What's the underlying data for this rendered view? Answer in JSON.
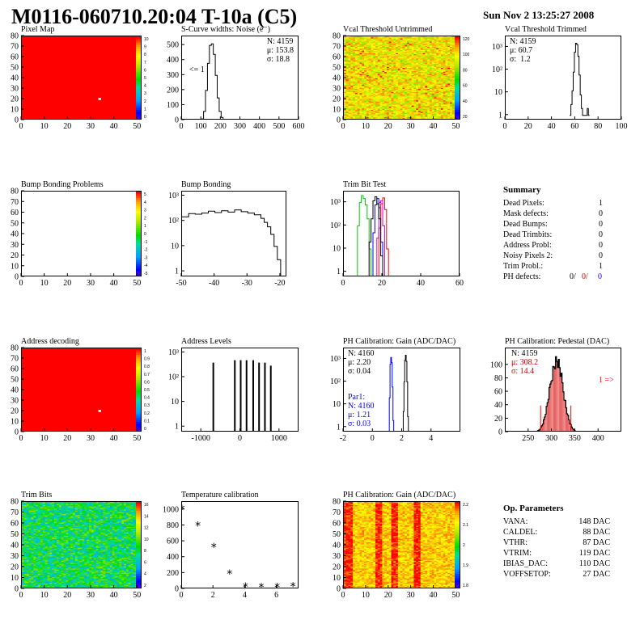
{
  "header": {
    "title": "M0116-060710.20:04 T-10a (C5)",
    "timestamp": "Sun Nov  2 13:25:27 2008"
  },
  "colors": {
    "red": "#ff0000",
    "blue": "#0000ff",
    "green": "#00cc00",
    "black": "#000000",
    "dark_red": "#cc0000"
  },
  "chart_data": [
    {
      "id": "pixel-map",
      "type": "heatmap",
      "title": "Pixel Map",
      "xlim": [
        0,
        52
      ],
      "ylim": [
        0,
        80
      ],
      "xticks": [
        0,
        10,
        20,
        30,
        40,
        50
      ],
      "yticks": [
        0,
        10,
        20,
        30,
        40,
        50,
        60,
        70,
        80
      ],
      "palette_ticks": [
        "10",
        "9",
        "8",
        "7",
        "6",
        "5",
        "4",
        "3",
        "2",
        "1",
        "0"
      ],
      "fill_value": 10,
      "outlier": {
        "x": 33,
        "y": 20,
        "value": 0
      }
    },
    {
      "id": "scurve-noise",
      "type": "line",
      "title": "S-Curve widths: Noise (e⁻)",
      "xlim": [
        0,
        600
      ],
      "ylim": [
        0,
        560
      ],
      "xticks": [
        0,
        100,
        200,
        300,
        400,
        500,
        600
      ],
      "yticks": [
        0,
        100,
        200,
        300,
        400,
        500
      ],
      "stats": [
        "N: 4159",
        "μ: 153.8",
        "σ: 18.8"
      ],
      "annotation": "<= 1",
      "x": [
        80,
        100,
        110,
        120,
        130,
        140,
        150,
        160,
        170,
        180,
        190,
        200,
        210,
        220,
        240
      ],
      "y": [
        0,
        10,
        60,
        200,
        380,
        500,
        510,
        440,
        300,
        150,
        60,
        20,
        8,
        2,
        0
      ]
    },
    {
      "id": "vcal-untrimmed",
      "type": "heatmap",
      "title": "Vcal Threshold Untrimmed",
      "xlim": [
        0,
        52
      ],
      "ylim": [
        0,
        80
      ],
      "xticks": [
        0,
        10,
        20,
        30,
        40,
        50
      ],
      "yticks": [
        0,
        10,
        20,
        30,
        40,
        50,
        60,
        70,
        80
      ],
      "palette_ticks": [
        "120",
        "100",
        "80",
        "60",
        "40",
        "20"
      ],
      "value_range": [
        20,
        130
      ]
    },
    {
      "id": "vcal-trimmed",
      "type": "line",
      "title": "Vcal Threshold Trimmed",
      "log_y": true,
      "xlim": [
        0,
        100
      ],
      "ylim": [
        0.6,
        3000
      ],
      "xticks": [
        0,
        20,
        40,
        60,
        80,
        100
      ],
      "yticks": [
        "1",
        "10",
        "10²",
        "10³"
      ],
      "stats": [
        "N: 4159",
        "μ: 60.7",
        "σ:  1.2"
      ],
      "x": [
        55,
        56,
        57,
        58,
        59,
        60,
        61,
        62,
        63,
        64,
        65,
        66,
        70,
        71,
        72
      ],
      "y": [
        1,
        3,
        12,
        80,
        600,
        1500,
        1300,
        400,
        60,
        8,
        2,
        1,
        2,
        1,
        1
      ]
    },
    {
      "id": "bump-bonding-problems",
      "type": "heatmap",
      "title": "Bump Bonding Problems",
      "xlim": [
        0,
        52
      ],
      "ylim": [
        0,
        80
      ],
      "xticks": [
        0,
        10,
        20,
        30,
        40,
        50
      ],
      "yticks": [
        0,
        10,
        20,
        30,
        40,
        50,
        60,
        70,
        80
      ],
      "palette_ticks": [
        "5",
        "4",
        "3",
        "2",
        "1",
        "0",
        "-1",
        "-2",
        "-3",
        "-4",
        "-5"
      ],
      "empty": true
    },
    {
      "id": "bump-bonding",
      "type": "line",
      "title": "Bump Bonding",
      "log_y": true,
      "xlim": [
        -50,
        -18
      ],
      "ylim": [
        0.6,
        1500
      ],
      "xticks": [
        -50,
        -40,
        -30,
        -20
      ],
      "yticks": [
        "1",
        "10",
        "10²",
        "10³"
      ],
      "x": [
        -50,
        -48,
        -46,
        -44,
        -42,
        -40,
        -38,
        -36,
        -34,
        -32,
        -30,
        -28,
        -26,
        -25,
        -24,
        -23,
        -22,
        -21,
        -20
      ],
      "y": [
        150,
        200,
        190,
        210,
        250,
        220,
        260,
        230,
        280,
        240,
        210,
        180,
        130,
        90,
        60,
        30,
        10,
        3,
        0.6
      ]
    },
    {
      "id": "trim-bit-test",
      "type": "line",
      "title": "Trim Bit Test",
      "log_y": true,
      "xlim": [
        0,
        60
      ],
      "ylim": [
        0.6,
        3000
      ],
      "xticks": [
        0,
        20,
        40,
        60
      ],
      "yticks": [
        "1",
        "10",
        "10²",
        "10³"
      ],
      "series": [
        {
          "color": "#00cc00",
          "x": [
            5,
            7,
            8,
            9,
            10,
            11,
            12,
            13,
            14,
            60
          ],
          "y": [
            0.6,
            100,
            1000,
            2000,
            1500,
            800,
            200,
            10,
            0.6,
            0.6
          ]
        },
        {
          "color": "#0000ff",
          "x": [
            14,
            15,
            16,
            17,
            18,
            19,
            20
          ],
          "y": [
            0.6,
            50,
            800,
            1500,
            600,
            20,
            0.6
          ]
        },
        {
          "color": "#ff0000",
          "x": [
            17,
            18,
            19,
            20,
            21,
            22,
            23
          ],
          "y": [
            0.6,
            80,
            900,
            1600,
            500,
            10,
            0.6
          ]
        },
        {
          "color": "#cc00cc",
          "x": [
            16,
            17,
            18,
            19,
            20,
            21
          ],
          "y": [
            0.6,
            30,
            1000,
            1200,
            100,
            0.6
          ]
        },
        {
          "color": "#000000",
          "x": [
            12,
            13,
            14,
            15,
            16,
            17,
            18,
            19,
            20
          ],
          "y": [
            0.6,
            20,
            200,
            1200,
            1800,
            900,
            200,
            5,
            0.6
          ]
        }
      ]
    },
    {
      "id": "address-decoding",
      "type": "heatmap",
      "title": "Address decoding",
      "xlim": [
        0,
        52
      ],
      "ylim": [
        0,
        80
      ],
      "xticks": [
        0,
        10,
        20,
        30,
        40,
        50
      ],
      "yticks": [
        0,
        10,
        20,
        30,
        40,
        50,
        60,
        70,
        80
      ],
      "palette_ticks": [
        "1",
        "0.9",
        "0.8",
        "0.7",
        "0.6",
        "0.5",
        "0.4",
        "0.3",
        "0.2",
        "0.1",
        "0"
      ],
      "fill_value": 1,
      "outlier": {
        "x": 33,
        "y": 20,
        "value": 0
      }
    },
    {
      "id": "address-levels",
      "type": "line",
      "title": "Address Levels",
      "log_y": true,
      "xlim": [
        -1500,
        1500
      ],
      "ylim": [
        0.6,
        1500
      ],
      "xticks": [
        -1000,
        0,
        1000
      ],
      "yticks": [
        "1",
        "10",
        "10²",
        "10³"
      ],
      "peaks_x": [
        -700,
        -150,
        0,
        150,
        320,
        470,
        620,
        770
      ],
      "peaks_y": [
        400,
        500,
        500,
        500,
        500,
        400,
        400,
        300
      ]
    },
    {
      "id": "ph-gain-hist",
      "type": "line",
      "title": "PH Calibration: Gain (ADC/DAC)",
      "log_y": true,
      "xlim": [
        -2,
        6
      ],
      "ylim": [
        0.6,
        3000
      ],
      "xticks": [
        -2,
        0,
        2,
        4
      ],
      "yticks": [
        "1",
        "10",
        "10²",
        "10³"
      ],
      "stats": [
        "N: 4160",
        "μ: 2.20",
        "σ: 0.04"
      ],
      "par1": {
        "label": "Par1:",
        "stats": [
          "N: 4160",
          "μ: 1.21",
          "σ: 0.03"
        ]
      },
      "series": [
        {
          "color": "#000000",
          "x": [
            2.0,
            2.05,
            2.1,
            2.15,
            2.2,
            2.25,
            2.3,
            2.35,
            2.4
          ],
          "y": [
            0.6,
            5,
            100,
            900,
            1500,
            800,
            100,
            3,
            0.6
          ]
        },
        {
          "color": "#0000ff",
          "x": [
            1.05,
            1.1,
            1.15,
            1.2,
            1.25,
            1.3,
            1.35,
            1.4
          ],
          "y": [
            0.6,
            20,
            600,
            1200,
            700,
            60,
            2,
            0.6
          ]
        }
      ]
    },
    {
      "id": "ph-pedestal",
      "type": "bar",
      "title": "PH Calibration: Pedestal (DAC)",
      "xlim": [
        200,
        450
      ],
      "ylim": [
        0,
        125
      ],
      "xticks": [
        250,
        300,
        350,
        400
      ],
      "yticks": [
        0,
        20,
        40,
        60,
        80,
        100
      ],
      "stats": [
        "N: 4159",
        "μ: 308.2",
        "σ: 14.4"
      ],
      "annotation": "1 =>",
      "mean": 308.2,
      "sigma": 14.4,
      "peak": 108,
      "cut_lines": [
        275,
        340
      ]
    },
    {
      "id": "trim-bits",
      "type": "heatmap",
      "title": "Trim Bits",
      "xlim": [
        0,
        52
      ],
      "ylim": [
        0,
        80
      ],
      "xticks": [
        0,
        10,
        20,
        30,
        40,
        50
      ],
      "yticks": [
        0,
        10,
        20,
        30,
        40,
        50,
        60,
        70,
        80
      ],
      "palette_ticks": [
        "16",
        "14",
        "12",
        "10",
        "8",
        "6",
        "4",
        "2"
      ],
      "value_range": [
        0,
        16
      ]
    },
    {
      "id": "temperature-calibration",
      "type": "scatter",
      "title": "Temperature calibration",
      "xlim": [
        0,
        7.4
      ],
      "ylim": [
        0,
        1100
      ],
      "xticks": [
        0,
        2,
        4,
        6
      ],
      "yticks": [
        0,
        200,
        400,
        600,
        800,
        1000
      ],
      "x": [
        0,
        1,
        2,
        3,
        4,
        5,
        6,
        7
      ],
      "y": [
        1010,
        800,
        530,
        195,
        30,
        25,
        25,
        35
      ]
    },
    {
      "id": "ph-gain-map",
      "type": "heatmap",
      "title": "PH Calibration: Gain (ADC/DAC)",
      "xlim": [
        0,
        52
      ],
      "ylim": [
        0,
        80
      ],
      "xticks": [
        0,
        10,
        20,
        30,
        40,
        50
      ],
      "yticks": [
        0,
        10,
        20,
        30,
        40,
        50,
        60,
        70,
        80
      ],
      "palette_ticks": [
        "2.2",
        "2.1",
        "2",
        "1.9",
        "1.8"
      ],
      "value_range": [
        1.8,
        2.3
      ]
    }
  ],
  "summary": {
    "title": "Summary",
    "rows": [
      {
        "label": "Dead Pixels:",
        "value": "1"
      },
      {
        "label": "Mask defects:",
        "value": "0"
      },
      {
        "label": "Dead Bumps:",
        "value": "0"
      },
      {
        "label": "Dead Trimbits:",
        "value": "0"
      },
      {
        "label": "Address Probl:",
        "value": "0"
      },
      {
        "label": "Noisy Pixels 2:",
        "value": "0"
      },
      {
        "label": "Trim Probl.:",
        "value": "1"
      }
    ],
    "ph_defects": {
      "label": "PH defects:",
      "v1": "0/",
      "v2": "0/",
      "v3": "0"
    }
  },
  "op_parameters": {
    "title": "Op. Parameters",
    "rows": [
      {
        "label": "VANA:",
        "value": "148 DAC"
      },
      {
        "label": "CALDEL:",
        "value": "88 DAC"
      },
      {
        "label": "VTHR:",
        "value": "87 DAC"
      },
      {
        "label": "VTRIM:",
        "value": "119 DAC"
      },
      {
        "label": "IBIAS_DAC:",
        "value": "110 DAC"
      },
      {
        "label": "VOFFSETOP:",
        "value": "27 DAC"
      }
    ]
  }
}
